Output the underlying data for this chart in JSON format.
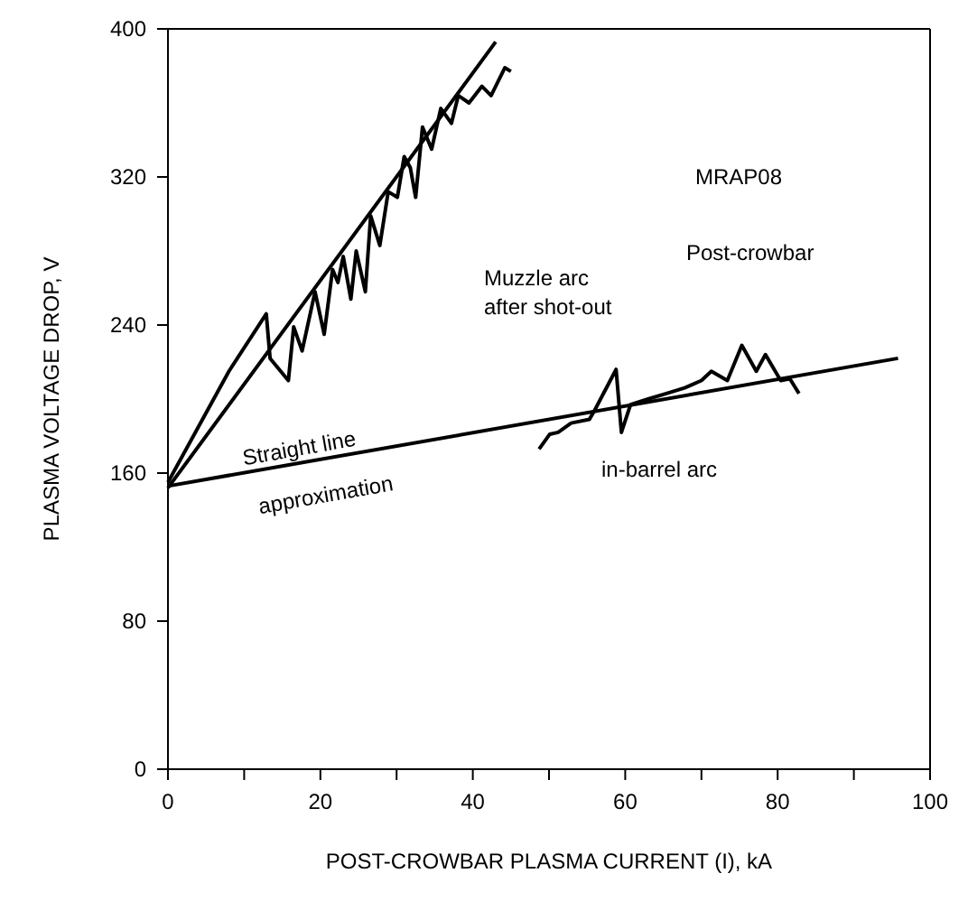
{
  "chart_data": {
    "type": "line",
    "xlabel": "POST-CROWBAR PLASMA CURRENT (I), kA",
    "ylabel": "PLASMA VOLTAGE DROP, V",
    "xlim": [
      0,
      100
    ],
    "xticks": [
      0,
      {
        "value": 10,
        "label": null
      },
      20,
      {
        "value": 30,
        "label": null
      },
      40,
      {
        "value": 50,
        "label": null
      },
      60,
      {
        "value": 70,
        "label": null
      },
      80,
      {
        "value": 90,
        "label": null
      },
      100
    ],
    "ylim": [
      0,
      400
    ],
    "yticks": [
      0,
      80,
      160,
      240,
      320,
      400
    ],
    "grid": false,
    "legend": false,
    "marker": "none",
    "line_style": "solid",
    "series": [
      {
        "color": "#000000",
        "x": [
          0,
          4,
          8,
          12.9,
          13.4,
          15.8,
          16.5,
          17.6,
          19.3,
          20.5,
          21.6,
          22.3,
          23,
          24,
          24.7,
          25.9,
          26.6,
          27.8,
          28.9,
          30.1,
          31,
          31.8,
          32.5,
          33.4,
          34.6,
          35.8,
          37.2,
          38.1,
          39.5,
          41.2,
          42.4,
          44.2,
          45
        ],
        "values": [
          155,
          185,
          215,
          246,
          222,
          210,
          239,
          226,
          258,
          235,
          270,
          263,
          277,
          254,
          280,
          258,
          299,
          283,
          312,
          309,
          331,
          325,
          309,
          347,
          335,
          357,
          349,
          364,
          360,
          369,
          364,
          379,
          377
        ]
      },
      {
        "color": "#000000",
        "x": [
          0,
          43
        ],
        "values": [
          152,
          393
        ]
      },
      {
        "color": "#000000",
        "x": [
          0,
          95.8
        ],
        "values": [
          153,
          222
        ]
      },
      {
        "color": "#000000",
        "x": [
          48.7,
          50.1,
          51.2,
          52.9,
          55.3,
          56,
          58.8,
          59.5,
          60.7,
          63,
          65.4,
          67.8,
          70,
          71.3,
          73.4,
          75.3,
          77.2,
          78.4,
          80.4,
          81.6,
          82.8
        ],
        "values": [
          173,
          181,
          182,
          187,
          189,
          194,
          216,
          182,
          197,
          200,
          203,
          206,
          210,
          215,
          210,
          229,
          215,
          224,
          210,
          211,
          203
        ]
      }
    ],
    "annotations": [
      "MRAP08",
      "Post-crowbar",
      "Muzzle arc after shot-out",
      "Straight line approximation",
      "in-barrel arc"
    ]
  }
}
